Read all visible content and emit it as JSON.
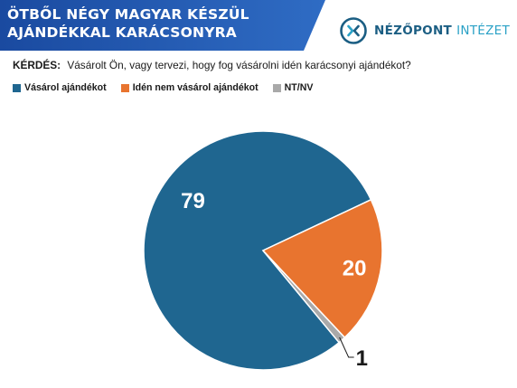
{
  "header": {
    "title": "ÖTBŐL NÉGY MAGYAR KÉSZÜL AJÁNDÉKKAL KARÁCSONYRA",
    "banner_color": "#2a63b8",
    "banner_accent": "#1a4aa0"
  },
  "logo": {
    "word1": "NÉZŐPONT",
    "word2": "INTÉZET",
    "mark_icon": "nezopont-logo-icon",
    "color_primary": "#1b5e83",
    "color_secondary": "#2aa1c6"
  },
  "question": {
    "label": "KÉRDÉS:",
    "text": "Vásárolt Ön, vagy tervezi, hogy fog vásárolni idén karácsonyi ajándékot?"
  },
  "chart_data": {
    "type": "pie",
    "title": "",
    "legend_position": "top-left",
    "series": [
      {
        "name": "Vásárol ajándékot",
        "value": 79,
        "label": "79",
        "color": "#1f6690",
        "label_color": "#ffffff"
      },
      {
        "name": "Idén nem vásárol ajándékot",
        "value": 20,
        "label": "20",
        "color": "#e8742f",
        "label_color": "#ffffff"
      },
      {
        "name": "NT/NV",
        "value": 1,
        "label": "1",
        "color": "#a9a9a9",
        "label_color": "#1a1a1a"
      }
    ]
  }
}
